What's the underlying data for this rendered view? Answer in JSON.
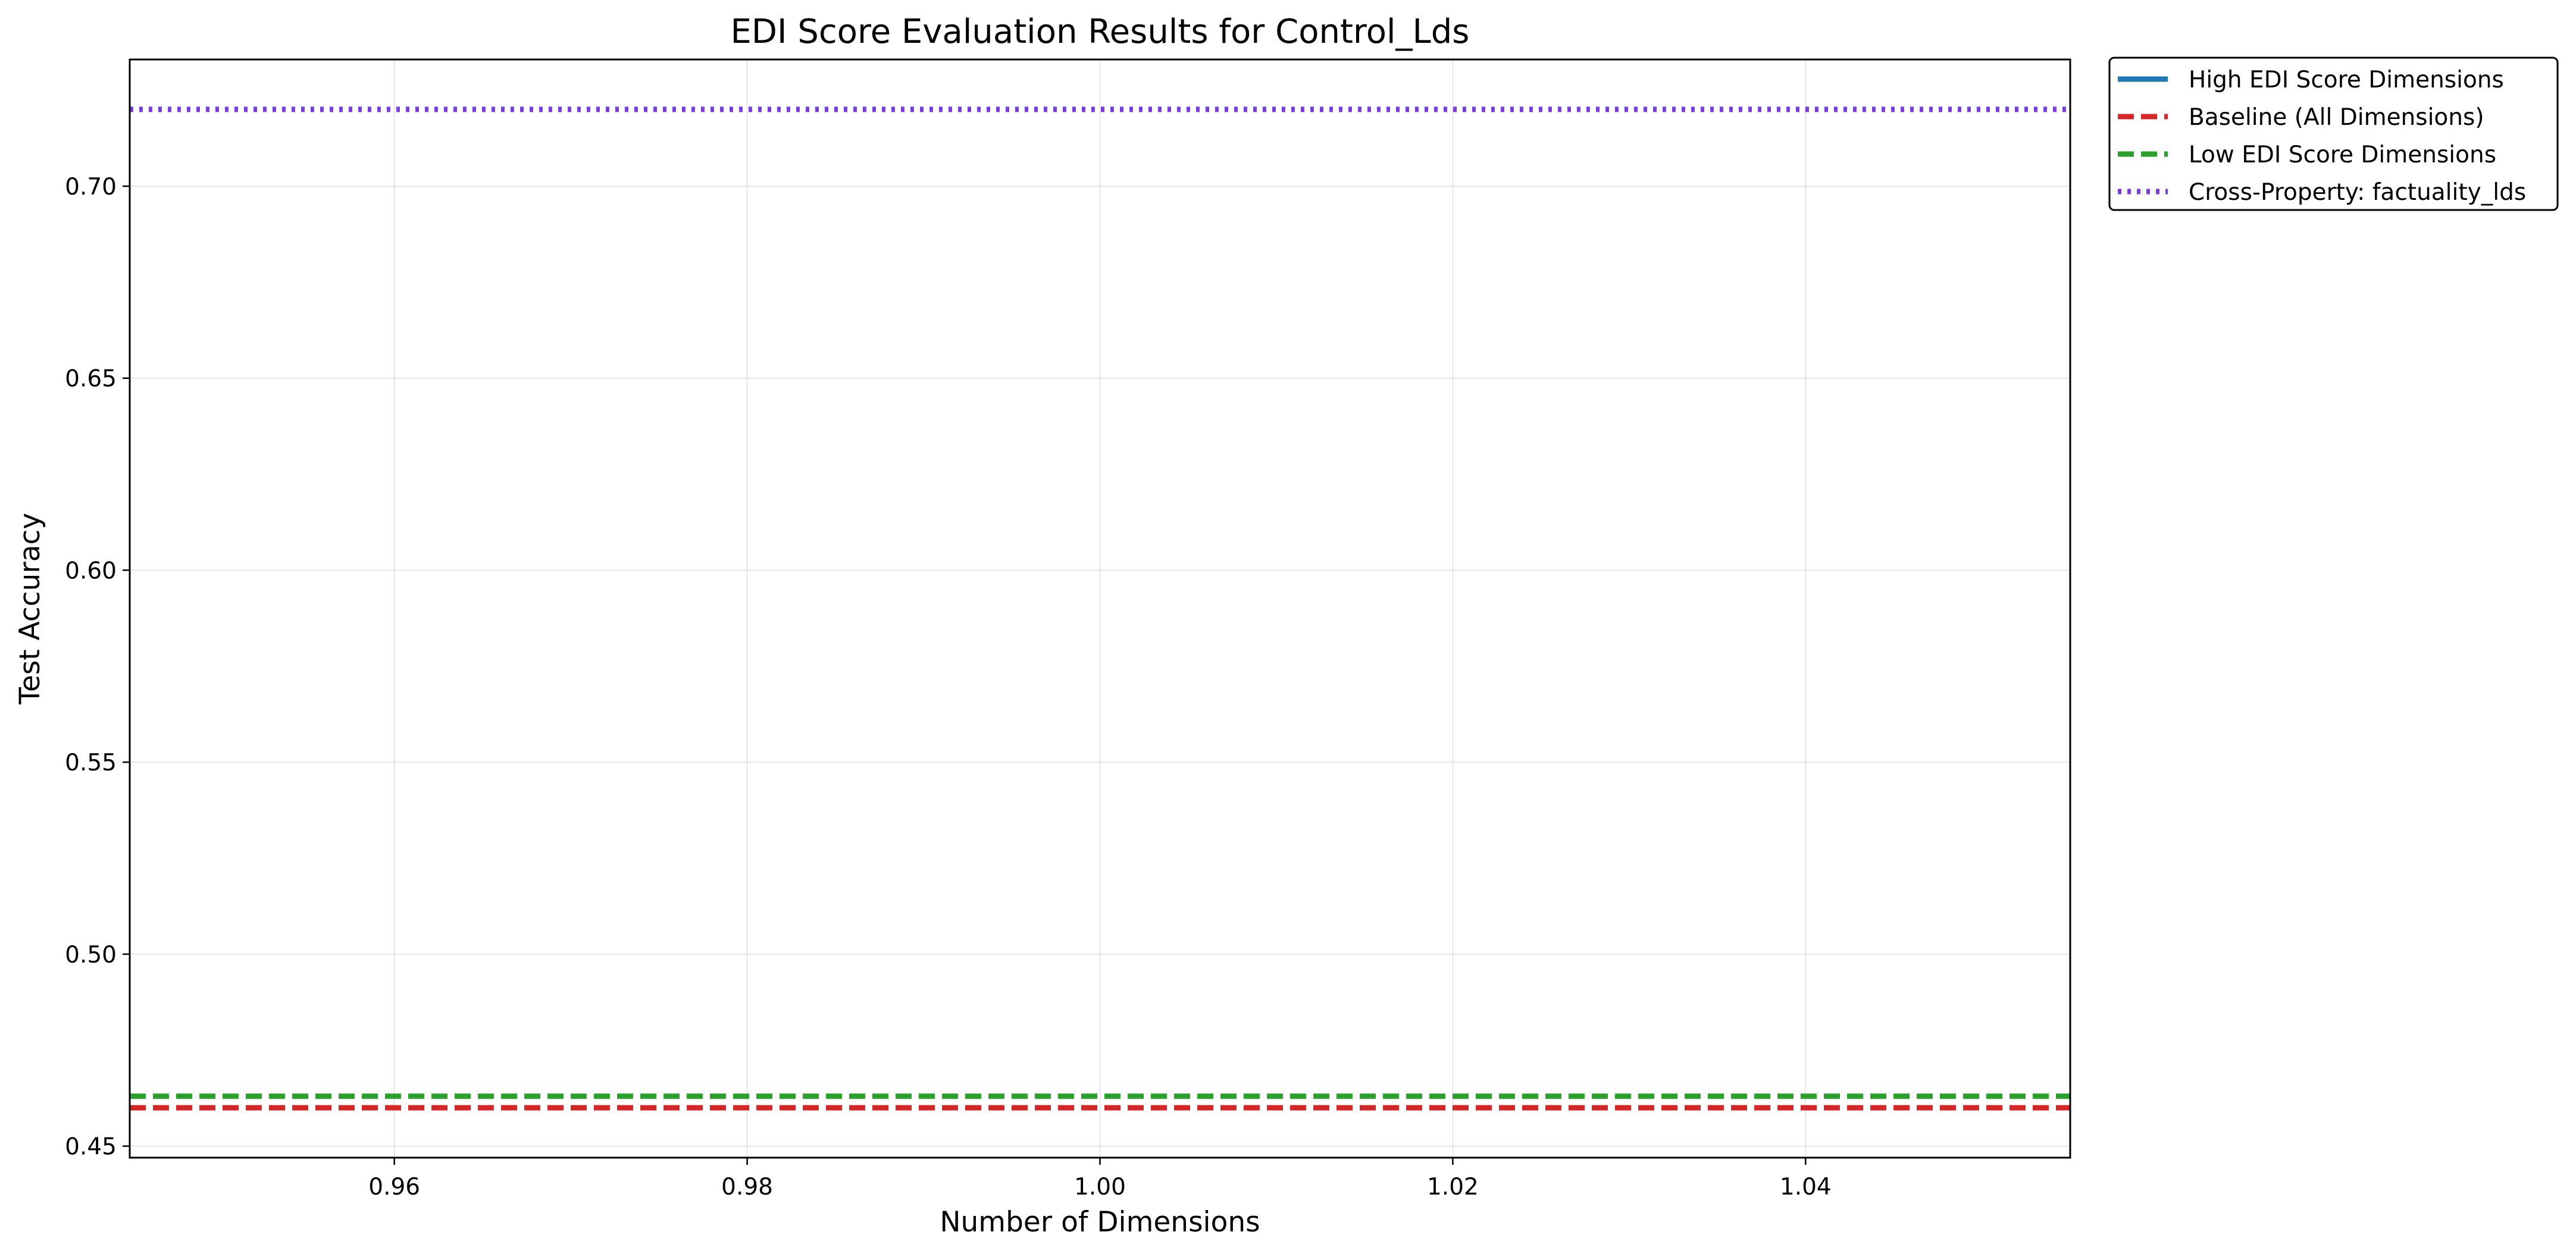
{
  "chart_data": {
    "type": "line",
    "title": "EDI Score Evaluation Results for Control_Lds",
    "xlabel": "Number of Dimensions",
    "ylabel": "Test Accuracy",
    "xlim": [
      0.945,
      1.055
    ],
    "ylim": [
      0.447,
      0.733
    ],
    "xticks": [
      0.96,
      0.98,
      1.0,
      1.02,
      1.04
    ],
    "xtick_labels": [
      "0.96",
      "0.98",
      "1.00",
      "1.02",
      "1.04"
    ],
    "yticks": [
      0.45,
      0.5,
      0.55,
      0.6,
      0.65,
      0.7
    ],
    "ytick_labels": [
      "0.45",
      "0.50",
      "0.55",
      "0.60",
      "0.65",
      "0.70"
    ],
    "grid": true,
    "legend_position": "outside upper right",
    "series": [
      {
        "name": "High EDI Score Dimensions",
        "style": "solid",
        "color": "#1f77b4",
        "x": [
          1.0
        ],
        "y": [
          null
        ]
      },
      {
        "name": "Baseline (All Dimensions)",
        "style": "dashed",
        "color": "#d62728",
        "hline": 0.46
      },
      {
        "name": "Low EDI Score Dimensions",
        "style": "dashed",
        "color": "#2ca02c",
        "hline": 0.463
      },
      {
        "name": "Cross-Property: factuality_lds",
        "style": "dotted",
        "color": "#7a3ae0",
        "hline": 0.72
      }
    ]
  }
}
